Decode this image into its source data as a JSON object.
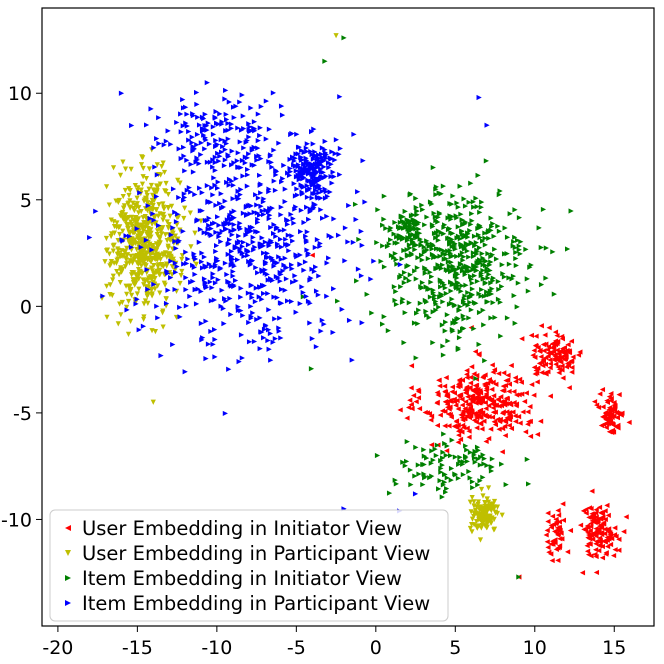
{
  "chart_data": {
    "type": "scatter",
    "title": "",
    "xlabel": "",
    "ylabel": "",
    "xlim": [
      -21,
      17.5
    ],
    "ylim": [
      -15,
      14
    ],
    "xticks": [
      -20,
      -15,
      -10,
      -5,
      0,
      5,
      10,
      15
    ],
    "yticks": [
      -10,
      -5,
      0,
      5,
      10
    ],
    "grid": false,
    "legend_position": "bottom-left",
    "series": [
      {
        "name": "User Embedding in Initiator View",
        "color": "#ff0000",
        "marker": "triangle-left",
        "clusters": [
          {
            "center": [
              6.5,
              -4.5
            ],
            "spread": [
              3.2,
              1.6
            ],
            "count": 330
          },
          {
            "center": [
              11.3,
              -2.3
            ],
            "spread": [
              1.5,
              0.9
            ],
            "count": 110
          },
          {
            "center": [
              14.8,
              -5.0
            ],
            "spread": [
              0.7,
              0.9
            ],
            "count": 70
          },
          {
            "center": [
              14.0,
              -10.5
            ],
            "spread": [
              1.1,
              1.1
            ],
            "count": 120
          },
          {
            "center": [
              11.3,
              -10.8
            ],
            "spread": [
              0.6,
              1.1
            ],
            "count": 45
          }
        ],
        "outliers": [
          [
            9.0,
            -12.7
          ],
          [
            -4.0,
            2.4
          ],
          [
            6.0,
            -1.0
          ],
          [
            3.5,
            -6.5
          ],
          [
            13.0,
            -12.5
          ]
        ]
      },
      {
        "name": "User Embedding in Participant View",
        "color": "#bfbf00",
        "marker": "triangle-down",
        "clusters": [
          {
            "center": [
              -14.5,
              3.0
            ],
            "spread": [
              2.0,
              2.8
            ],
            "count": 560
          },
          {
            "center": [
              6.8,
              -9.8
            ],
            "spread": [
              0.8,
              0.7
            ],
            "count": 120
          }
        ],
        "outliers": [
          [
            -2.5,
            12.7
          ],
          [
            -14.0,
            -4.5
          ],
          [
            -11.0,
            4.0
          ],
          [
            -16.5,
            6.5
          ]
        ]
      },
      {
        "name": "Item Embedding in Initiator View",
        "color": "#008000",
        "marker": "triangle-right",
        "clusters": [
          {
            "center": [
              5.0,
              2.0
            ],
            "spread": [
              4.2,
              3.2
            ],
            "count": 520
          },
          {
            "center": [
              4.5,
              -7.5
            ],
            "spread": [
              3.5,
              1.3
            ],
            "count": 100
          },
          {
            "center": [
              2.0,
              3.5
            ],
            "spread": [
              1.0,
              0.8
            ],
            "count": 70
          }
        ],
        "outliers": [
          [
            -2.0,
            12.6
          ],
          [
            9.0,
            -12.7
          ],
          [
            -3.2,
            11.5
          ]
        ]
      },
      {
        "name": "Item Embedding in Participant View",
        "color": "#0000ff",
        "marker": "triangle-right",
        "clusters": [
          {
            "center": [
              -8.0,
              3.0
            ],
            "spread": [
              5.5,
              4.5
            ],
            "count": 620
          },
          {
            "center": [
              -4.0,
              6.5
            ],
            "spread": [
              1.2,
              1.2
            ],
            "count": 170
          },
          {
            "center": [
              -10.0,
              8.0
            ],
            "spread": [
              3.5,
              1.8
            ],
            "count": 140
          }
        ],
        "outliers": [
          [
            -16.0,
            10.0
          ],
          [
            6.5,
            9.8
          ],
          [
            7.0,
            8.5
          ],
          [
            -2.0,
            -9.5
          ],
          [
            2.5,
            -8.8
          ],
          [
            1.5,
            -9.6
          ]
        ]
      }
    ]
  }
}
